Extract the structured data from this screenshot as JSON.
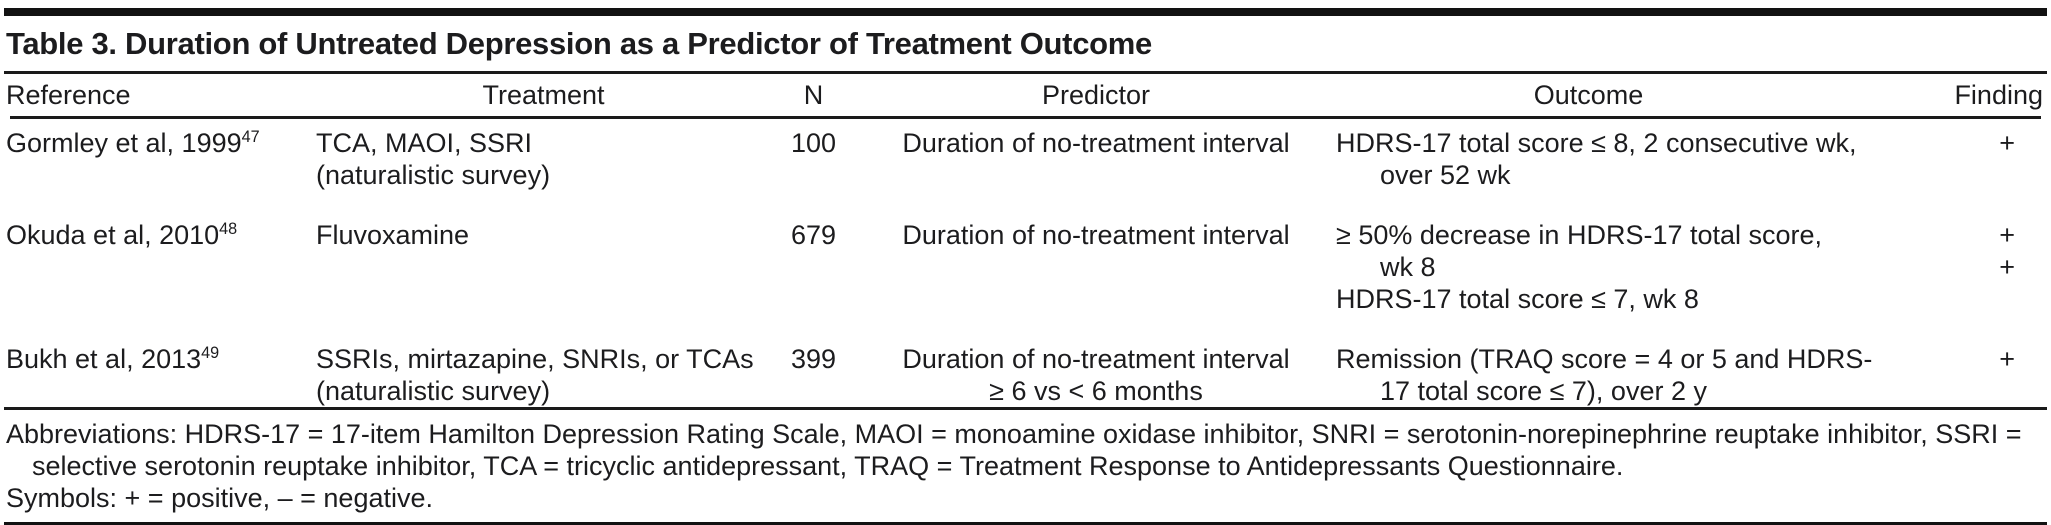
{
  "title": "Table 3. Duration of Untreated Depression as a Predictor of Treatment Outcome",
  "columns": [
    {
      "key": "reference",
      "label": "Reference"
    },
    {
      "key": "treatment",
      "label": "Treatment"
    },
    {
      "key": "n",
      "label": "N"
    },
    {
      "key": "predictor",
      "label": "Predictor"
    },
    {
      "key": "outcome",
      "label": "Outcome"
    },
    {
      "key": "finding",
      "label": "Finding"
    }
  ],
  "rows": [
    {
      "reference": {
        "text": "Gormley et al, 1999",
        "sup": "47"
      },
      "treatment_lines": [
        "TCA, MAOI, SSRI",
        "(naturalistic survey)"
      ],
      "n": "100",
      "predictor_lines": [
        "Duration of no-treatment interval"
      ],
      "outcome_lines": [
        {
          "text": "HDRS-17 total score ≤ 8, 2 consecutive wk,",
          "indent": false
        },
        {
          "text": "over 52 wk",
          "indent": true
        }
      ],
      "findings": [
        "+"
      ]
    },
    {
      "reference": {
        "text": "Okuda et al, 2010",
        "sup": "48"
      },
      "treatment_lines": [
        "Fluvoxamine"
      ],
      "n": "679",
      "predictor_lines": [
        "Duration of no-treatment interval"
      ],
      "outcome_lines": [
        {
          "text": "≥ 50% decrease in HDRS-17 total score,",
          "indent": false
        },
        {
          "text": "wk 8",
          "indent": true
        },
        {
          "text": "HDRS-17 total score ≤ 7, wk 8",
          "indent": false
        }
      ],
      "findings": [
        "+",
        "+"
      ]
    },
    {
      "reference": {
        "text": "Bukh et al, 2013",
        "sup": "49"
      },
      "treatment_lines": [
        "SSRIs, mirtazapine, SNRIs, or TCAs",
        "(naturalistic survey)"
      ],
      "n": "399",
      "predictor_lines": [
        "Duration of no-treatment interval",
        "≥ 6 vs < 6 months"
      ],
      "outcome_lines": [
        {
          "text": "Remission (TRAQ score = 4 or 5 and HDRS-",
          "indent": false
        },
        {
          "text": "17 total score ≤ 7), over 2 y",
          "indent": true
        }
      ],
      "findings": [
        "+"
      ]
    }
  ],
  "footnotes": {
    "abbreviations": "Abbreviations: HDRS-17 = 17-item Hamilton Depression Rating Scale, MAOI = monoamine oxidase inhibitor, SNRI = serotonin-norepinephrine reuptake inhibitor, SSRI = selective serotonin reuptake inhibitor, TCA = tricyclic antidepressant, TRAQ = Treatment Response to Antidepressants Questionnaire.",
    "symbols": "Symbols: + = positive, – = negative."
  }
}
